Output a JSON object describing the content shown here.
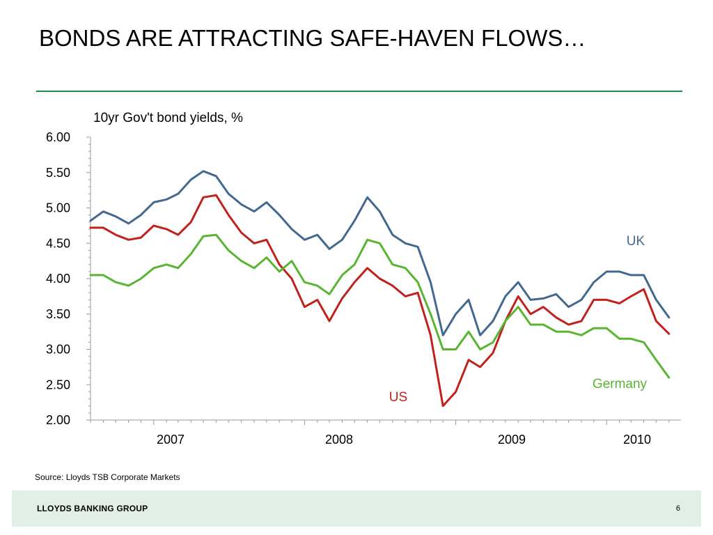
{
  "slide": {
    "title": "BONDS ARE ATTRACTING SAFE-HAVEN FLOWS…",
    "source": "Source: Lloyds TSB Corporate Markets",
    "footer_brand": "LLOYDS BANKING GROUP",
    "page_number": "6"
  },
  "colors": {
    "rule": "#1e8a4a",
    "uk": "#41698f",
    "us": "#c0211c",
    "germany": "#59b531",
    "footer": "#e1efe6"
  },
  "chart_data": {
    "type": "line",
    "title": "10yr Gov't bond yields, %",
    "xlabel": "",
    "ylabel": "",
    "ylim": [
      2.0,
      6.0
    ],
    "yticks": [
      "6.00",
      "5.50",
      "5.00",
      "4.50",
      "4.00",
      "3.50",
      "3.00",
      "2.50",
      "2.00"
    ],
    "x_range": [
      "2006-08-01",
      "2010-06-30"
    ],
    "year_labels": [
      {
        "label": "2007",
        "date": "2007-01-01"
      },
      {
        "label": "2008",
        "date": "2008-01-01"
      },
      {
        "label": "2009",
        "date": "2009-01-01"
      },
      {
        "label": "2010",
        "date": "2010-01-01"
      }
    ],
    "grid": false,
    "legend": "inline labels",
    "series": [
      {
        "name": "UK",
        "color": "#41698f",
        "points": [
          [
            "2006-08-01",
            4.82
          ],
          [
            "2006-09-01",
            4.95
          ],
          [
            "2006-10-01",
            4.88
          ],
          [
            "2006-11-01",
            4.78
          ],
          [
            "2006-12-01",
            4.9
          ],
          [
            "2007-01-01",
            5.08
          ],
          [
            "2007-02-01",
            5.12
          ],
          [
            "2007-03-01",
            5.2
          ],
          [
            "2007-04-01",
            5.4
          ],
          [
            "2007-05-01",
            5.52
          ],
          [
            "2007-06-01",
            5.45
          ],
          [
            "2007-07-01",
            5.2
          ],
          [
            "2007-08-01",
            5.05
          ],
          [
            "2007-09-01",
            4.95
          ],
          [
            "2007-10-01",
            5.08
          ],
          [
            "2007-11-01",
            4.9
          ],
          [
            "2007-12-01",
            4.7
          ],
          [
            "2008-01-01",
            4.55
          ],
          [
            "2008-02-01",
            4.62
          ],
          [
            "2008-03-01",
            4.42
          ],
          [
            "2008-04-01",
            4.55
          ],
          [
            "2008-05-01",
            4.82
          ],
          [
            "2008-06-01",
            5.15
          ],
          [
            "2008-07-01",
            4.95
          ],
          [
            "2008-08-01",
            4.62
          ],
          [
            "2008-09-01",
            4.5
          ],
          [
            "2008-10-01",
            4.45
          ],
          [
            "2008-11-01",
            3.95
          ],
          [
            "2008-12-01",
            3.2
          ],
          [
            "2009-01-01",
            3.5
          ],
          [
            "2009-02-01",
            3.7
          ],
          [
            "2009-03-01",
            3.2
          ],
          [
            "2009-04-01",
            3.4
          ],
          [
            "2009-05-01",
            3.75
          ],
          [
            "2009-06-01",
            3.95
          ],
          [
            "2009-07-01",
            3.7
          ],
          [
            "2009-08-01",
            3.72
          ],
          [
            "2009-09-01",
            3.78
          ],
          [
            "2009-10-01",
            3.6
          ],
          [
            "2009-11-01",
            3.7
          ],
          [
            "2009-12-01",
            3.95
          ],
          [
            "2010-01-01",
            4.1
          ],
          [
            "2010-02-01",
            4.1
          ],
          [
            "2010-03-01",
            4.05
          ],
          [
            "2010-04-01",
            4.05
          ],
          [
            "2010-05-01",
            3.7
          ],
          [
            "2010-06-01",
            3.45
          ]
        ]
      },
      {
        "name": "US",
        "color": "#c0211c",
        "points": [
          [
            "2006-08-01",
            4.72
          ],
          [
            "2006-09-01",
            4.72
          ],
          [
            "2006-10-01",
            4.62
          ],
          [
            "2006-11-01",
            4.55
          ],
          [
            "2006-12-01",
            4.58
          ],
          [
            "2007-01-01",
            4.75
          ],
          [
            "2007-02-01",
            4.7
          ],
          [
            "2007-03-01",
            4.62
          ],
          [
            "2007-04-01",
            4.8
          ],
          [
            "2007-05-01",
            5.15
          ],
          [
            "2007-06-01",
            5.18
          ],
          [
            "2007-07-01",
            4.9
          ],
          [
            "2007-08-01",
            4.65
          ],
          [
            "2007-09-01",
            4.5
          ],
          [
            "2007-10-01",
            4.55
          ],
          [
            "2007-11-01",
            4.2
          ],
          [
            "2007-12-01",
            4.0
          ],
          [
            "2008-01-01",
            3.6
          ],
          [
            "2008-02-01",
            3.7
          ],
          [
            "2008-03-01",
            3.4
          ],
          [
            "2008-04-01",
            3.72
          ],
          [
            "2008-05-01",
            3.95
          ],
          [
            "2008-06-01",
            4.15
          ],
          [
            "2008-07-01",
            4.0
          ],
          [
            "2008-08-01",
            3.9
          ],
          [
            "2008-09-01",
            3.75
          ],
          [
            "2008-10-01",
            3.8
          ],
          [
            "2008-11-01",
            3.2
          ],
          [
            "2008-12-01",
            2.2
          ],
          [
            "2009-01-01",
            2.4
          ],
          [
            "2009-02-01",
            2.85
          ],
          [
            "2009-03-01",
            2.75
          ],
          [
            "2009-04-01",
            2.95
          ],
          [
            "2009-05-01",
            3.4
          ],
          [
            "2009-06-01",
            3.75
          ],
          [
            "2009-07-01",
            3.5
          ],
          [
            "2009-08-01",
            3.6
          ],
          [
            "2009-09-01",
            3.45
          ],
          [
            "2009-10-01",
            3.35
          ],
          [
            "2009-11-01",
            3.4
          ],
          [
            "2009-12-01",
            3.7
          ],
          [
            "2010-01-01",
            3.7
          ],
          [
            "2010-02-01",
            3.65
          ],
          [
            "2010-03-01",
            3.75
          ],
          [
            "2010-04-01",
            3.85
          ],
          [
            "2010-05-01",
            3.4
          ],
          [
            "2010-06-01",
            3.22
          ]
        ]
      },
      {
        "name": "Germany",
        "color": "#59b531",
        "points": [
          [
            "2006-08-01",
            4.05
          ],
          [
            "2006-09-01",
            4.05
          ],
          [
            "2006-10-01",
            3.95
          ],
          [
            "2006-11-01",
            3.9
          ],
          [
            "2006-12-01",
            4.0
          ],
          [
            "2007-01-01",
            4.15
          ],
          [
            "2007-02-01",
            4.2
          ],
          [
            "2007-03-01",
            4.15
          ],
          [
            "2007-04-01",
            4.35
          ],
          [
            "2007-05-01",
            4.6
          ],
          [
            "2007-06-01",
            4.62
          ],
          [
            "2007-07-01",
            4.4
          ],
          [
            "2007-08-01",
            4.25
          ],
          [
            "2007-09-01",
            4.15
          ],
          [
            "2007-10-01",
            4.3
          ],
          [
            "2007-11-01",
            4.1
          ],
          [
            "2007-12-01",
            4.25
          ],
          [
            "2008-01-01",
            3.95
          ],
          [
            "2008-02-01",
            3.9
          ],
          [
            "2008-03-01",
            3.78
          ],
          [
            "2008-04-01",
            4.05
          ],
          [
            "2008-05-01",
            4.2
          ],
          [
            "2008-06-01",
            4.55
          ],
          [
            "2008-07-01",
            4.5
          ],
          [
            "2008-08-01",
            4.2
          ],
          [
            "2008-09-01",
            4.15
          ],
          [
            "2008-10-01",
            3.95
          ],
          [
            "2008-11-01",
            3.5
          ],
          [
            "2008-12-01",
            3.0
          ],
          [
            "2009-01-01",
            3.0
          ],
          [
            "2009-02-01",
            3.25
          ],
          [
            "2009-03-01",
            3.0
          ],
          [
            "2009-04-01",
            3.1
          ],
          [
            "2009-05-01",
            3.4
          ],
          [
            "2009-06-01",
            3.6
          ],
          [
            "2009-07-01",
            3.35
          ],
          [
            "2009-08-01",
            3.35
          ],
          [
            "2009-09-01",
            3.25
          ],
          [
            "2009-10-01",
            3.25
          ],
          [
            "2009-11-01",
            3.2
          ],
          [
            "2009-12-01",
            3.3
          ],
          [
            "2010-01-01",
            3.3
          ],
          [
            "2010-02-01",
            3.15
          ],
          [
            "2010-03-01",
            3.15
          ],
          [
            "2010-04-01",
            3.1
          ],
          [
            "2010-05-01",
            2.85
          ],
          [
            "2010-06-01",
            2.6
          ]
        ]
      }
    ]
  }
}
